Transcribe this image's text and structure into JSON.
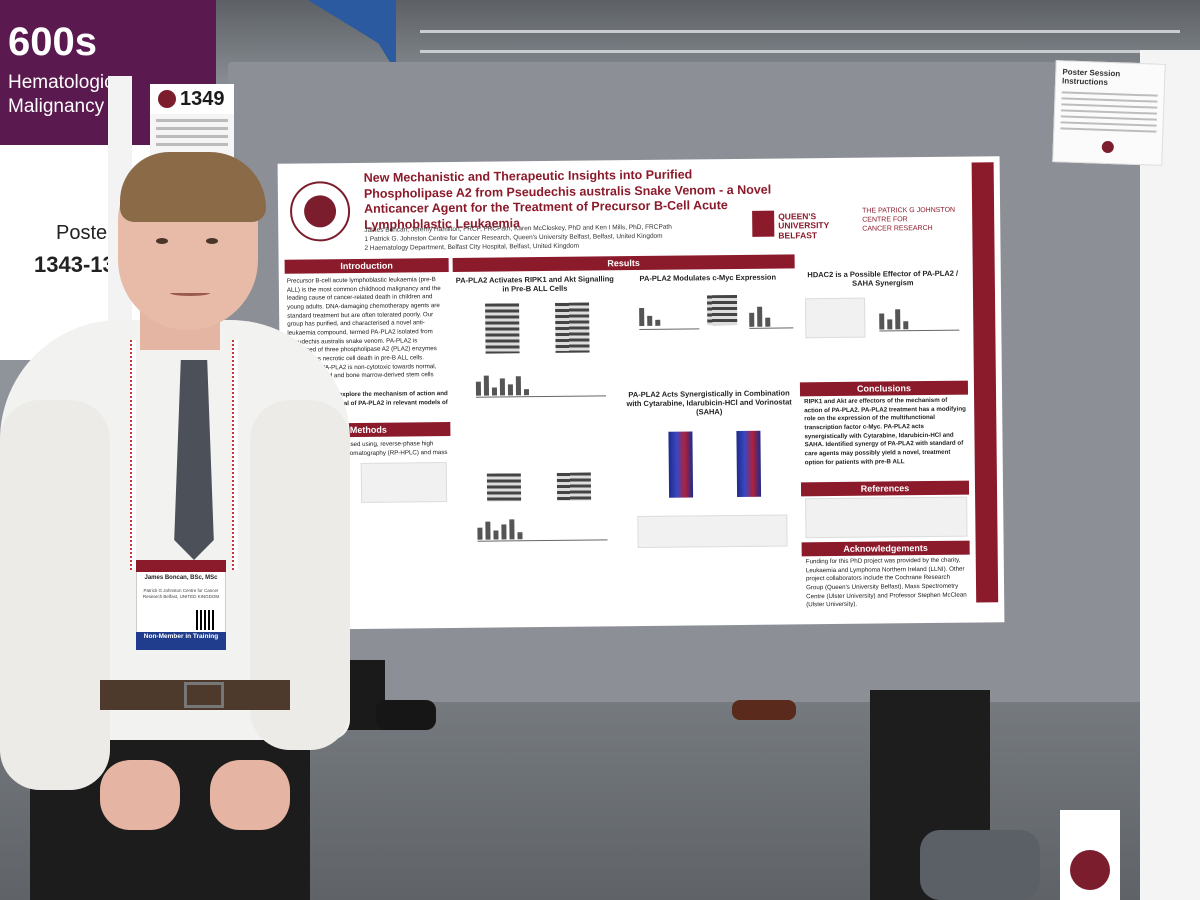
{
  "sign": {
    "number": "600s",
    "line1": "Hematologic",
    "line2": "Malignancy",
    "poster_label": "Poster #",
    "poster_range": "1343-13"
  },
  "poster_number_card": {
    "number": "1349"
  },
  "instructions_card": {
    "title": "Poster Session Instructions"
  },
  "poster": {
    "title": "New Mechanistic and Therapeutic Insights into Purified Phospholipase A2 from Pseudechis australis Snake Venom - a Novel Anticancer Agent for the Treatment of Precursor B-Cell Acute Lymphoblastic Leukaemia",
    "authors": "James Boncan, Jeremy Hamilton, FRCP, FRCPath, Karen McCloskey, PhD and Ken I Mills, PhD, FRCPath",
    "affiliation1": "1 Patrick G. Johnston Centre for Cancer Research, Queen's University Belfast, Belfast, United Kingdom",
    "affiliation2": "2 Haematology Department, Belfast City Hospital, Belfast, United Kingdom",
    "qub_line1": "QUEEN'S",
    "qub_line2": "UNIVERSITY",
    "qub_line3": "BELFAST",
    "pgj_line1": "THE PATRICK G JOHNSTON",
    "pgj_line2": "CENTRE FOR",
    "pgj_line3": "CANCER RESEARCH",
    "side_text": "Malignancy: Molecular Pharmacology and Drug Resistance",
    "sections": {
      "introduction": "Introduction",
      "results": "Results",
      "methods": "Methods",
      "conclusions": "Conclusions",
      "references": "References",
      "acknowledgements": "Acknowledgements"
    },
    "intro_text": "Precursor B-cell acute lymphoblastic leukaemia (pre-B ALL) is the most common childhood malignancy and the leading cause of cancer-related death in children and young adults. DNA-damaging chemotherapy agents are standard treatment but are often tolerated poorly. Our group has purified, and characterised a novel anti-leukaemia compound, termed PA-PLA2 isolated from Pseudechis australis snake venom. PA-PLA2 is comprised of three phospholipase A2 (PLA2) enzymes and induces necrotic cell death in pre-B ALL cells. Importantly, PA-PLA2 is non-cytotoxic towards normal, peripheral blood and bone marrow-derived stem cells",
    "aim_text": "Aim of Study: To explore the mechanism of action and therapeutic potential of PA-PLA2 in relevant models of pre-B ALL.",
    "methods_text": "Purified and characterised using, reverse-phase high performance liquid chromatography (RP-HPLC) and mass spectrometry.",
    "result_heading1": "PA-PLA2 Activates RIPK1 and Akt Signalling in Pre-B ALL Cells",
    "result_heading2": "PA-PLA2 Modulates c-Myc Expression",
    "result_heading3": "HDAC2 is a Possible Effector of PA-PLA2 / SAHA Synergism",
    "result_heading4": "PA-PLA2 Acts Synergistically in Combination with Cytarabine, Idarubicin-HCl and Vorinostat (SAHA)",
    "conclusions_text": "RIPK1 and Akt are effectors of the mechanism of action of PA-PLA2. PA-PLA2 treatment has a modifying role on the expression of the multifunctional transcription factor c-Myc. PA-PLA2 acts synergistically with Cytarabine, Idarubicin-HCl and SAHA. Identified synergy of PA-PLA2 with standard of care agents may possibly yield a novel, treatment option for patients with pre-B ALL",
    "ack_text": "Funding for this PhD project was provided by the charity, Leukaemia and Lymphoma Northern Ireland (LLNI). Other project collaborators include the Cochrane Research Group (Queen's University Belfast), Mass Spectrometry Centre (Ulster University) and Professor Stephen McClean (Ulster University)."
  },
  "badge": {
    "name": "James Boncan, BSc, MSc",
    "affiliation": "Patrick G Johnston Centre for Cancer Research Belfast, UNITED KINGDOM",
    "status": "Non-Member in Training"
  },
  "colors": {
    "ash_maroon": "#8b1a2b",
    "sign_purple": "#5a1a4f",
    "badge_blue": "#1f3d8c"
  }
}
